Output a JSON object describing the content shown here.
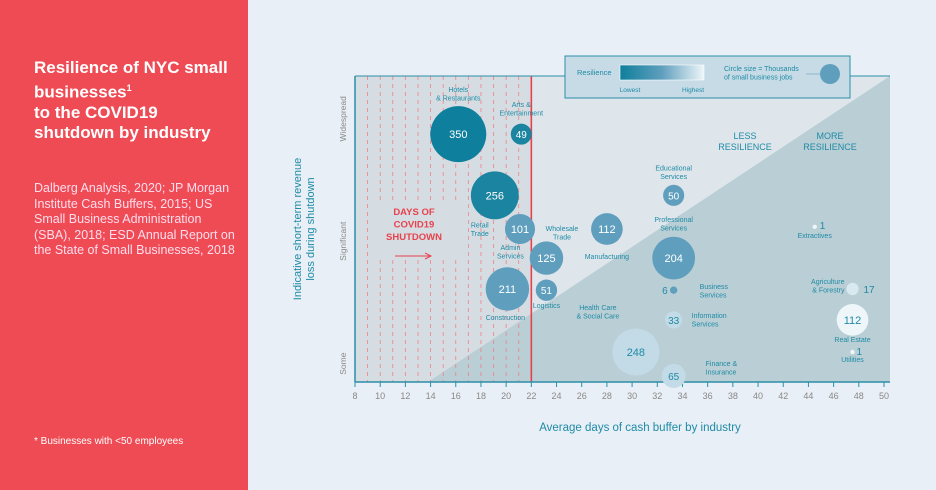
{
  "panel": {
    "title": "Resilience of NYC small businesses",
    "title_sup": "1",
    "title_rest": "to the COVID19 shutdown by industry",
    "source": "Dalberg Analysis, 2020; JP Morgan Institute Cash Buffers, 2015; US Small Business Administration (SBA), 2018; ESD Annual Report on the State of Small Businesses, 2018",
    "footnote": "* Businesses with <50 employees"
  },
  "chart_data": {
    "type": "scatter",
    "xlabel": "Average days of cash buffer by industry",
    "ylabel": "Indicative short-term revenue loss during shutdown",
    "xlim": [
      8,
      50
    ],
    "xticks": [
      8,
      10,
      12,
      14,
      16,
      18,
      20,
      22,
      24,
      26,
      28,
      30,
      32,
      34,
      36,
      38,
      40,
      42,
      44,
      46,
      48,
      50
    ],
    "yticks": [
      {
        "label": "Some",
        "y": 0.6
      },
      {
        "label": "Significant",
        "y": 4.6
      },
      {
        "label": "Widespread",
        "y": 8.6
      }
    ],
    "ylim": [
      0,
      10
    ],
    "shutdown_days": 22,
    "shutdown_label": [
      "DAYS OF",
      "COVID19",
      "SHUTDOWN"
    ],
    "zone_labels": {
      "less": [
        "LESS",
        "RESILIENCE"
      ],
      "more": [
        "MORE",
        "RESILIENCE"
      ]
    },
    "legend": {
      "resilience": "Resilience",
      "lowest": "Lowest",
      "highest": "Highest",
      "size": [
        "Circle size = Thousands",
        "of small business jobs"
      ]
    },
    "colors": {
      "lowest": "#0e7f9c",
      "mid": "#5f9fbd",
      "highest": "#eef6f9",
      "shutdown": "#e8414c",
      "text": "#1f8ba5"
    },
    "bubbles": [
      {
        "name": [
          "Hotels",
          "& Restaurants"
        ],
        "x": 16.2,
        "y": 8.1,
        "jobs": 350,
        "resilience": 0.0
      },
      {
        "name": [
          "Arts &",
          "Entertainment"
        ],
        "x": 21.2,
        "y": 8.1,
        "jobs": 49,
        "resilience": 0.05
      },
      {
        "name": [
          "Retail",
          "Trade"
        ],
        "x": 19.1,
        "y": 6.1,
        "jobs": 256,
        "resilience": 0.05
      },
      {
        "name": [
          "Wholesale",
          "Trade"
        ],
        "x": 21.1,
        "y": 5.0,
        "jobs": 101,
        "resilience": 0.35
      },
      {
        "name": [
          "Manufacturing"
        ],
        "x": 28.0,
        "y": 5.0,
        "jobs": 112,
        "resilience": 0.35
      },
      {
        "name": [
          "Admin",
          "Services"
        ],
        "x": 23.2,
        "y": 4.05,
        "jobs": 125,
        "resilience": 0.35
      },
      {
        "name": [
          "Professional",
          "Services"
        ],
        "x": 33.3,
        "y": 4.05,
        "jobs": 204,
        "resilience": 0.35
      },
      {
        "name": [
          "Educational",
          "Services"
        ],
        "x": 33.3,
        "y": 6.1,
        "jobs": 50,
        "resilience": 0.35
      },
      {
        "name": [
          "Construction"
        ],
        "x": 20.1,
        "y": 3.04,
        "jobs": 211,
        "resilience": 0.35
      },
      {
        "name": [
          "Logistics"
        ],
        "x": 23.2,
        "y": 3.0,
        "jobs": 51,
        "resilience": 0.35
      },
      {
        "name": [
          "Business",
          "Services"
        ],
        "x": 33.3,
        "y": 3.0,
        "jobs": 6,
        "resilience": 0.35
      },
      {
        "name": [
          "Extractives"
        ],
        "x": 44.5,
        "y": 5.07,
        "jobs": 1,
        "resilience": 1.0
      },
      {
        "name": [
          "Agriculture",
          "& Forestry"
        ],
        "x": 47.5,
        "y": 3.04,
        "jobs": 17,
        "resilience": 0.9
      },
      {
        "name": [
          "Information",
          "Services"
        ],
        "x": 33.3,
        "y": 2.03,
        "jobs": 33,
        "resilience": 0.8
      },
      {
        "name": [
          "Real Estate"
        ],
        "x": 47.5,
        "y": 2.03,
        "jobs": 112,
        "resilience": 1.0
      },
      {
        "name": [
          "Health Care",
          "& Social Care"
        ],
        "x": 30.3,
        "y": 0.98,
        "jobs": 248,
        "resilience": 0.8
      },
      {
        "name": [
          "Finance &",
          "Insurance"
        ],
        "x": 33.3,
        "y": 0.2,
        "jobs": 65,
        "resilience": 0.8
      },
      {
        "name": [
          "Utilities"
        ],
        "x": 47.5,
        "y": 0.98,
        "jobs": 1,
        "resilience": 1.0
      }
    ]
  }
}
